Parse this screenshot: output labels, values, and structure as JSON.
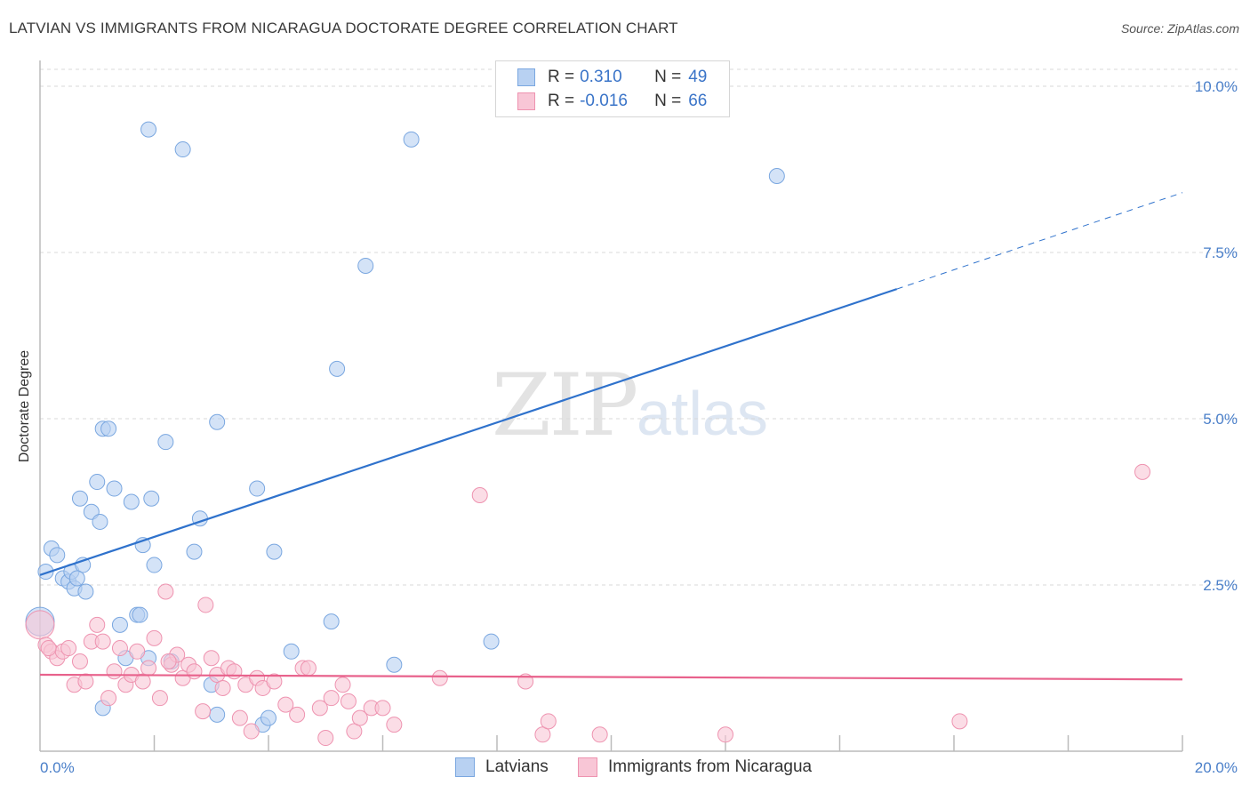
{
  "title": "LATVIAN VS IMMIGRANTS FROM NICARAGUA DOCTORATE DEGREE CORRELATION CHART",
  "source": "Source: ZipAtlas.com",
  "watermark": {
    "part1": "ZIP",
    "part2": "atlas"
  },
  "legend": {
    "rows": [
      {
        "r_label": "R =",
        "r_value": "0.310",
        "n_label": "N =",
        "n_value": "49"
      },
      {
        "r_label": "R =",
        "r_value": "-0.016",
        "n_label": "N =",
        "n_value": "66"
      }
    ]
  },
  "bottom_legend": {
    "series1": "Latvians",
    "series2": "Immigrants from Nicaragua"
  },
  "colors": {
    "blue_fill": "#b8d1f2",
    "blue_stroke": "#7aa7e0",
    "blue_line": "#2f72cc",
    "pink_fill": "#f8c6d6",
    "pink_stroke": "#ee93b0",
    "pink_line": "#e8628c",
    "grid": "#d8d8d8",
    "tick_text": "#4a7fc9"
  },
  "chart_data": {
    "type": "scatter",
    "title": "LATVIAN VS IMMIGRANTS FROM NICARAGUA DOCTORATE DEGREE CORRELATION CHART",
    "xlabel": "",
    "ylabel": "Doctorate Degree",
    "xlim": [
      0,
      20
    ],
    "ylim": [
      0,
      10.5
    ],
    "x_tick_labels": [
      "0.0%",
      "20.0%"
    ],
    "y_ticks": [
      2.5,
      5.0,
      7.5,
      10.0
    ],
    "y_tick_labels": [
      "2.5%",
      "5.0%",
      "7.5%",
      "10.0%"
    ],
    "grid": true,
    "legend_position": "top-center",
    "series": [
      {
        "name": "Latvians",
        "r": 0.31,
        "n": 49,
        "trend": {
          "x0": 0.0,
          "y0": 2.65,
          "x1": 15.0,
          "y1": 6.95,
          "dash_to_x": 20.0,
          "dash_to_y": 8.4
        },
        "points": [
          [
            0.0,
            1.95
          ],
          [
            0.1,
            2.7
          ],
          [
            0.2,
            3.05
          ],
          [
            0.3,
            2.95
          ],
          [
            0.4,
            2.6
          ],
          [
            0.5,
            2.55
          ],
          [
            0.55,
            2.7
          ],
          [
            0.6,
            2.45
          ],
          [
            0.7,
            3.8
          ],
          [
            0.75,
            2.8
          ],
          [
            0.8,
            2.4
          ],
          [
            0.9,
            3.6
          ],
          [
            1.0,
            4.05
          ],
          [
            1.05,
            3.45
          ],
          [
            1.1,
            4.85
          ],
          [
            1.2,
            4.85
          ],
          [
            1.3,
            3.95
          ],
          [
            1.4,
            1.9
          ],
          [
            1.5,
            1.4
          ],
          [
            1.6,
            3.75
          ],
          [
            1.7,
            2.05
          ],
          [
            1.8,
            3.1
          ],
          [
            1.9,
            1.4
          ],
          [
            1.95,
            3.8
          ],
          [
            2.0,
            2.8
          ],
          [
            2.2,
            4.65
          ],
          [
            2.3,
            1.35
          ],
          [
            2.5,
            9.05
          ],
          [
            2.7,
            3.0
          ],
          [
            2.8,
            3.5
          ],
          [
            3.0,
            1.0
          ],
          [
            3.1,
            0.55
          ],
          [
            3.1,
            4.95
          ],
          [
            3.8,
            3.95
          ],
          [
            3.9,
            0.4
          ],
          [
            4.0,
            0.5
          ],
          [
            4.1,
            3.0
          ],
          [
            4.4,
            1.5
          ],
          [
            5.1,
            1.95
          ],
          [
            5.2,
            5.75
          ],
          [
            5.7,
            7.3
          ],
          [
            6.2,
            1.3
          ],
          [
            6.5,
            9.2
          ],
          [
            7.9,
            1.65
          ],
          [
            12.9,
            8.65
          ],
          [
            1.1,
            0.65
          ],
          [
            1.75,
            2.05
          ],
          [
            0.65,
            2.6
          ],
          [
            1.9,
            9.35
          ]
        ]
      },
      {
        "name": "Immigrants from Nicaragua",
        "r": -0.016,
        "n": 66,
        "trend": {
          "x0": 0.0,
          "y0": 1.15,
          "x1": 20.0,
          "y1": 1.08
        },
        "points": [
          [
            0.0,
            1.9
          ],
          [
            0.1,
            1.6
          ],
          [
            0.2,
            1.5
          ],
          [
            0.3,
            1.4
          ],
          [
            0.4,
            1.5
          ],
          [
            0.5,
            1.55
          ],
          [
            0.6,
            1.0
          ],
          [
            0.7,
            1.35
          ],
          [
            0.8,
            1.05
          ],
          [
            0.9,
            1.65
          ],
          [
            1.0,
            1.9
          ],
          [
            1.1,
            1.65
          ],
          [
            1.2,
            0.8
          ],
          [
            1.3,
            1.2
          ],
          [
            1.4,
            1.55
          ],
          [
            1.5,
            1.0
          ],
          [
            1.6,
            1.15
          ],
          [
            1.7,
            1.5
          ],
          [
            1.8,
            1.05
          ],
          [
            1.9,
            1.25
          ],
          [
            2.0,
            1.7
          ],
          [
            2.1,
            0.8
          ],
          [
            2.2,
            2.4
          ],
          [
            2.3,
            1.3
          ],
          [
            2.4,
            1.45
          ],
          [
            2.5,
            1.1
          ],
          [
            2.6,
            1.3
          ],
          [
            2.7,
            1.2
          ],
          [
            2.85,
            0.6
          ],
          [
            2.9,
            2.2
          ],
          [
            3.0,
            1.4
          ],
          [
            3.1,
            1.15
          ],
          [
            3.2,
            0.95
          ],
          [
            3.3,
            1.25
          ],
          [
            3.4,
            1.2
          ],
          [
            3.5,
            0.5
          ],
          [
            3.6,
            1.0
          ],
          [
            3.7,
            0.3
          ],
          [
            3.8,
            1.1
          ],
          [
            3.9,
            0.95
          ],
          [
            4.1,
            1.05
          ],
          [
            4.3,
            0.7
          ],
          [
            4.5,
            0.55
          ],
          [
            4.6,
            1.25
          ],
          [
            4.7,
            1.25
          ],
          [
            4.9,
            0.65
          ],
          [
            5.0,
            0.2
          ],
          [
            5.1,
            0.8
          ],
          [
            5.3,
            1.0
          ],
          [
            5.4,
            0.75
          ],
          [
            5.5,
            0.3
          ],
          [
            5.6,
            0.5
          ],
          [
            5.8,
            0.65
          ],
          [
            6.0,
            0.65
          ],
          [
            6.2,
            0.4
          ],
          [
            7.0,
            1.1
          ],
          [
            7.7,
            3.85
          ],
          [
            8.5,
            1.05
          ],
          [
            8.8,
            0.25
          ],
          [
            8.9,
            0.45
          ],
          [
            9.8,
            0.25
          ],
          [
            12.0,
            0.25
          ],
          [
            16.1,
            0.45
          ],
          [
            19.3,
            4.2
          ],
          [
            0.15,
            1.55
          ],
          [
            2.25,
            1.35
          ]
        ]
      }
    ]
  }
}
